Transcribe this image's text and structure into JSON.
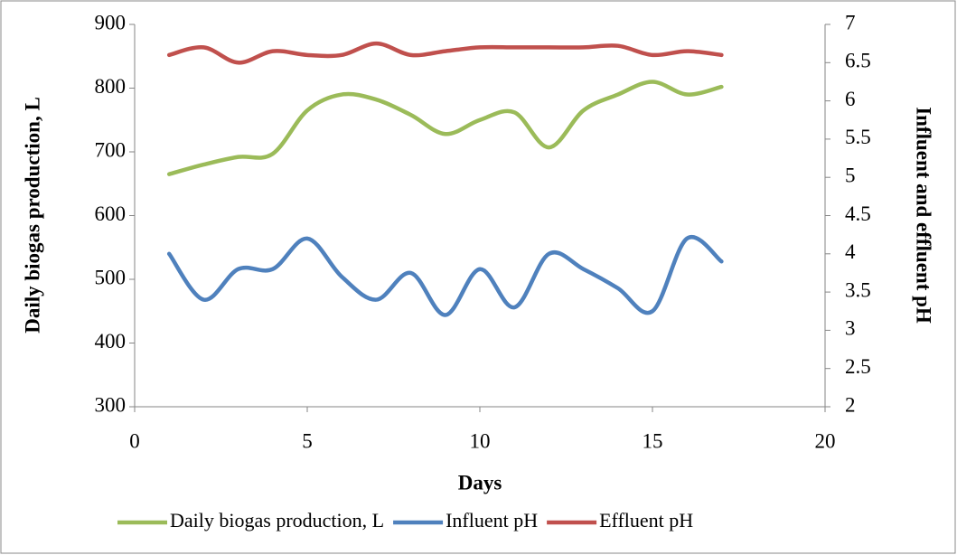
{
  "chart_data": {
    "type": "line",
    "xlabel": "Days",
    "ylabel": "Daily biogas production, L",
    "y2label": "Influent and effluent pH",
    "x": [
      1,
      2,
      3,
      4,
      5,
      6,
      7,
      8,
      9,
      10,
      11,
      12,
      13,
      14,
      15,
      16,
      17
    ],
    "series": [
      {
        "name": "Daily biogas production, L",
        "color": "#9bbb59",
        "values": [
          665,
          680,
          692,
          697,
          765,
          790,
          782,
          758,
          728,
          750,
          762,
          707,
          765,
          790,
          810,
          790,
          802
        ]
      },
      {
        "name": "Influent pH",
        "color": "#4f81bd",
        "axis": "y2",
        "values": [
          4.0,
          3.4,
          3.8,
          3.8,
          4.2,
          3.7,
          3.4,
          3.75,
          3.2,
          3.8,
          3.3,
          4.0,
          3.8,
          3.55,
          3.25,
          4.2,
          3.9
        ]
      },
      {
        "name": "Effluent pH",
        "color": "#c0504d",
        "axis": "y2",
        "values": [
          6.6,
          6.7,
          6.5,
          6.65,
          6.6,
          6.6,
          6.75,
          6.6,
          6.65,
          6.7,
          6.7,
          6.7,
          6.7,
          6.72,
          6.6,
          6.65,
          6.6
        ]
      }
    ],
    "xlim": [
      0,
      20
    ],
    "xticks": [
      0,
      5,
      10,
      15,
      20
    ],
    "ylim": [
      300,
      900
    ],
    "yticks": [
      300,
      400,
      500,
      600,
      700,
      800,
      900
    ],
    "y2lim": [
      2,
      7
    ],
    "y2ticks": [
      2,
      2.5,
      3,
      3.5,
      4,
      4.5,
      5,
      5.5,
      6,
      6.5,
      7
    ],
    "legend": "bottom",
    "grid": false
  }
}
